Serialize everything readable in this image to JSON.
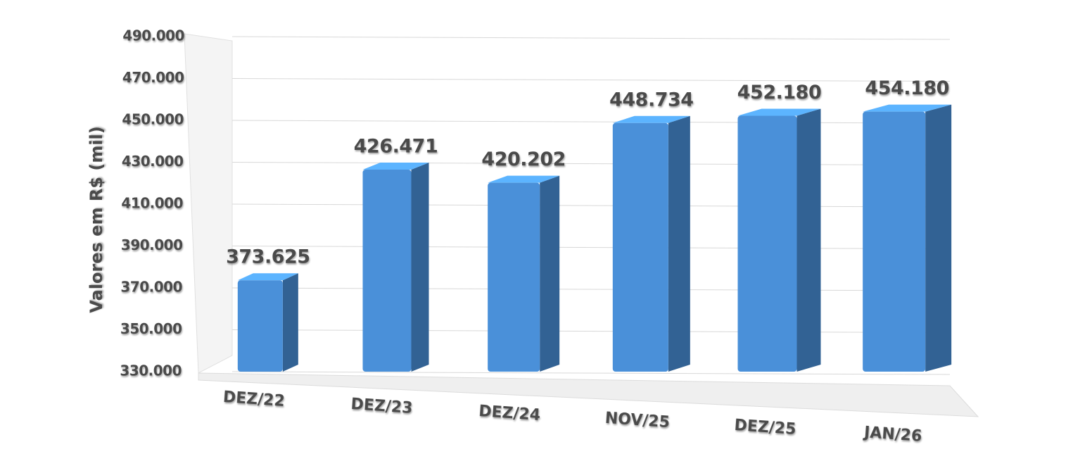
{
  "chart_data": {
    "type": "bar",
    "y_label": "Valores em R$ (mil)",
    "categories": [
      "DEZ/22",
      "DEZ/23",
      "DEZ/24",
      "NOV/25",
      "DEZ/25",
      "JAN/26"
    ],
    "values": [
      373625,
      426471,
      420202,
      448734,
      452180,
      454180
    ],
    "value_labels": [
      "373.625",
      "426.471",
      "420.202",
      "448.734",
      "452.180",
      "454.180"
    ],
    "color": "#4a90d9",
    "ylim": [
      330000,
      490000
    ],
    "yticks": [
      {
        "value": 330000,
        "label": "330.000"
      },
      {
        "value": 350000,
        "label": "350.000"
      },
      {
        "value": 370000,
        "label": "370.000"
      },
      {
        "value": 390000,
        "label": "390.000"
      },
      {
        "value": 410000,
        "label": "410.000"
      },
      {
        "value": 430000,
        "label": "430.000"
      },
      {
        "value": 450000,
        "label": "450.000"
      },
      {
        "value": 470000,
        "label": "470.000"
      },
      {
        "value": 490000,
        "label": "490.000"
      }
    ],
    "grid": true
  }
}
